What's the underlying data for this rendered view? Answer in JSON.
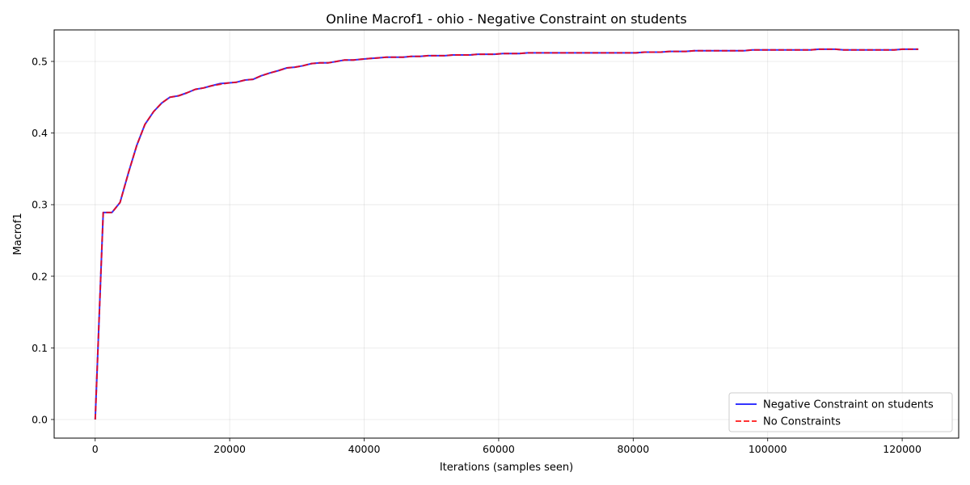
{
  "chart_data": {
    "type": "line",
    "title": "Online Macrof1 - ohio - Negative Constraint on students",
    "xlabel": "Iterations (samples seen)",
    "ylabel": "Macrof1",
    "xlim": [
      -6100,
      128400
    ],
    "ylim": [
      -0.026,
      0.544
    ],
    "xticks": [
      0,
      20000,
      40000,
      60000,
      80000,
      100000,
      120000
    ],
    "xtick_labels": [
      "0",
      "20000",
      "40000",
      "60000",
      "80000",
      "100000",
      "120000"
    ],
    "yticks": [
      0.0,
      0.1,
      0.2,
      0.3,
      0.4,
      0.5
    ],
    "ytick_labels": [
      "0.0",
      "0.1",
      "0.2",
      "0.3",
      "0.4",
      "0.5"
    ],
    "grid": true,
    "legend_position": "bottom-right",
    "series": [
      {
        "name": "Negative Constraint on students",
        "color": "#0000ff",
        "style": "solid",
        "x": [
          0,
          1200,
          2500,
          3700,
          5000,
          6200,
          7400,
          8700,
          9900,
          11100,
          12400,
          13600,
          14900,
          16100,
          17300,
          18600,
          19800,
          21000,
          22300,
          23500,
          24700,
          26000,
          27200,
          28500,
          29700,
          30900,
          32200,
          33400,
          34600,
          35900,
          37100,
          38400,
          39600,
          40800,
          42100,
          43300,
          44500,
          45800,
          47000,
          48300,
          49500,
          50700,
          52000,
          53200,
          54400,
          55700,
          56900,
          58200,
          59400,
          60600,
          61900,
          63100,
          64300,
          65600,
          66800,
          68000,
          69300,
          70500,
          71800,
          73000,
          74200,
          75500,
          76700,
          77900,
          79200,
          80400,
          81700,
          82900,
          84100,
          85400,
          86600,
          87800,
          89100,
          90300,
          91500,
          92800,
          94000,
          95300,
          96500,
          97700,
          99000,
          100200,
          101400,
          102700,
          103900,
          105200,
          106400,
          107600,
          108900,
          110100,
          111300,
          112600,
          113800,
          115000,
          116300,
          117500,
          118800,
          120000,
          121200,
          122400
        ],
        "y": [
          0.0,
          0.289,
          0.289,
          0.303,
          0.346,
          0.383,
          0.412,
          0.43,
          0.442,
          0.45,
          0.452,
          0.456,
          0.461,
          0.463,
          0.466,
          0.469,
          0.47,
          0.471,
          0.474,
          0.475,
          0.48,
          0.484,
          0.487,
          0.491,
          0.492,
          0.494,
          0.497,
          0.498,
          0.498,
          0.5,
          0.502,
          0.502,
          0.503,
          0.504,
          0.505,
          0.506,
          0.506,
          0.506,
          0.507,
          0.507,
          0.508,
          0.508,
          0.508,
          0.509,
          0.509,
          0.509,
          0.51,
          0.51,
          0.51,
          0.511,
          0.511,
          0.511,
          0.512,
          0.512,
          0.512,
          0.512,
          0.512,
          0.512,
          0.512,
          0.512,
          0.512,
          0.512,
          0.512,
          0.512,
          0.512,
          0.512,
          0.513,
          0.513,
          0.513,
          0.514,
          0.514,
          0.514,
          0.515,
          0.515,
          0.515,
          0.515,
          0.515,
          0.515,
          0.515,
          0.516,
          0.516,
          0.516,
          0.516,
          0.516,
          0.516,
          0.516,
          0.516,
          0.517,
          0.517,
          0.517,
          0.516,
          0.516,
          0.516,
          0.516,
          0.516,
          0.516,
          0.516,
          0.517,
          0.517,
          0.517
        ]
      },
      {
        "name": "No Constraints",
        "color": "#ff0000",
        "style": "dashed",
        "x": [
          0,
          1200,
          2500,
          3700,
          5000,
          6200,
          7400,
          8700,
          9900,
          11100,
          12400,
          13600,
          14900,
          16100,
          17300,
          18600,
          19800,
          21000,
          22300,
          23500,
          24700,
          26000,
          27200,
          28500,
          29700,
          30900,
          32200,
          33400,
          34600,
          35900,
          37100,
          38400,
          39600,
          40800,
          42100,
          43300,
          44500,
          45800,
          47000,
          48300,
          49500,
          50700,
          52000,
          53200,
          54400,
          55700,
          56900,
          58200,
          59400,
          60600,
          61900,
          63100,
          64300,
          65600,
          66800,
          68000,
          69300,
          70500,
          71800,
          73000,
          74200,
          75500,
          76700,
          77900,
          79200,
          80400,
          81700,
          82900,
          84100,
          85400,
          86600,
          87800,
          89100,
          90300,
          91500,
          92800,
          94000,
          95300,
          96500,
          97700,
          99000,
          100200,
          101400,
          102700,
          103900,
          105200,
          106400,
          107600,
          108900,
          110100,
          111300,
          112600,
          113800,
          115000,
          116300,
          117500,
          118800,
          120000,
          121200,
          122400
        ],
        "y": [
          0.0,
          0.289,
          0.289,
          0.303,
          0.346,
          0.383,
          0.412,
          0.43,
          0.442,
          0.45,
          0.452,
          0.456,
          0.461,
          0.463,
          0.466,
          0.468,
          0.47,
          0.471,
          0.474,
          0.475,
          0.48,
          0.484,
          0.487,
          0.491,
          0.492,
          0.494,
          0.497,
          0.498,
          0.498,
          0.5,
          0.502,
          0.502,
          0.503,
          0.504,
          0.505,
          0.506,
          0.506,
          0.506,
          0.507,
          0.507,
          0.508,
          0.508,
          0.508,
          0.509,
          0.509,
          0.509,
          0.51,
          0.51,
          0.51,
          0.511,
          0.511,
          0.511,
          0.512,
          0.512,
          0.512,
          0.512,
          0.512,
          0.512,
          0.512,
          0.512,
          0.512,
          0.512,
          0.512,
          0.512,
          0.512,
          0.512,
          0.513,
          0.513,
          0.513,
          0.514,
          0.514,
          0.514,
          0.515,
          0.515,
          0.515,
          0.515,
          0.515,
          0.515,
          0.515,
          0.516,
          0.516,
          0.516,
          0.516,
          0.516,
          0.516,
          0.516,
          0.516,
          0.517,
          0.517,
          0.517,
          0.516,
          0.516,
          0.516,
          0.516,
          0.516,
          0.516,
          0.516,
          0.517,
          0.517,
          0.517
        ]
      }
    ]
  }
}
